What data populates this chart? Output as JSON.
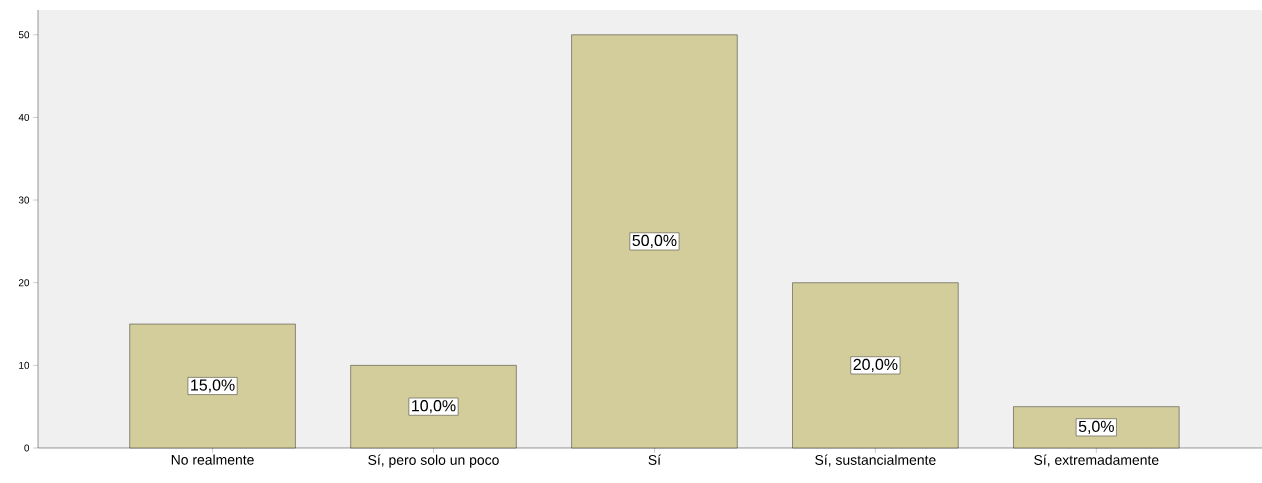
{
  "chart_data": {
    "type": "bar",
    "categories": [
      "No realmente",
      "Sí, pero solo un poco",
      "Sí",
      "Sí, sustancialmente",
      "Sí, extremadamente"
    ],
    "values": [
      15,
      10,
      50,
      20,
      5
    ],
    "value_labels": [
      "15,0%",
      "10,0%",
      "50,0%",
      "20,0%",
      "5,0%"
    ],
    "color": "#d2cd9b",
    "ylim": [
      0,
      53
    ],
    "yticks": [
      0,
      10,
      20,
      30,
      40,
      50
    ],
    "grid": false
  }
}
